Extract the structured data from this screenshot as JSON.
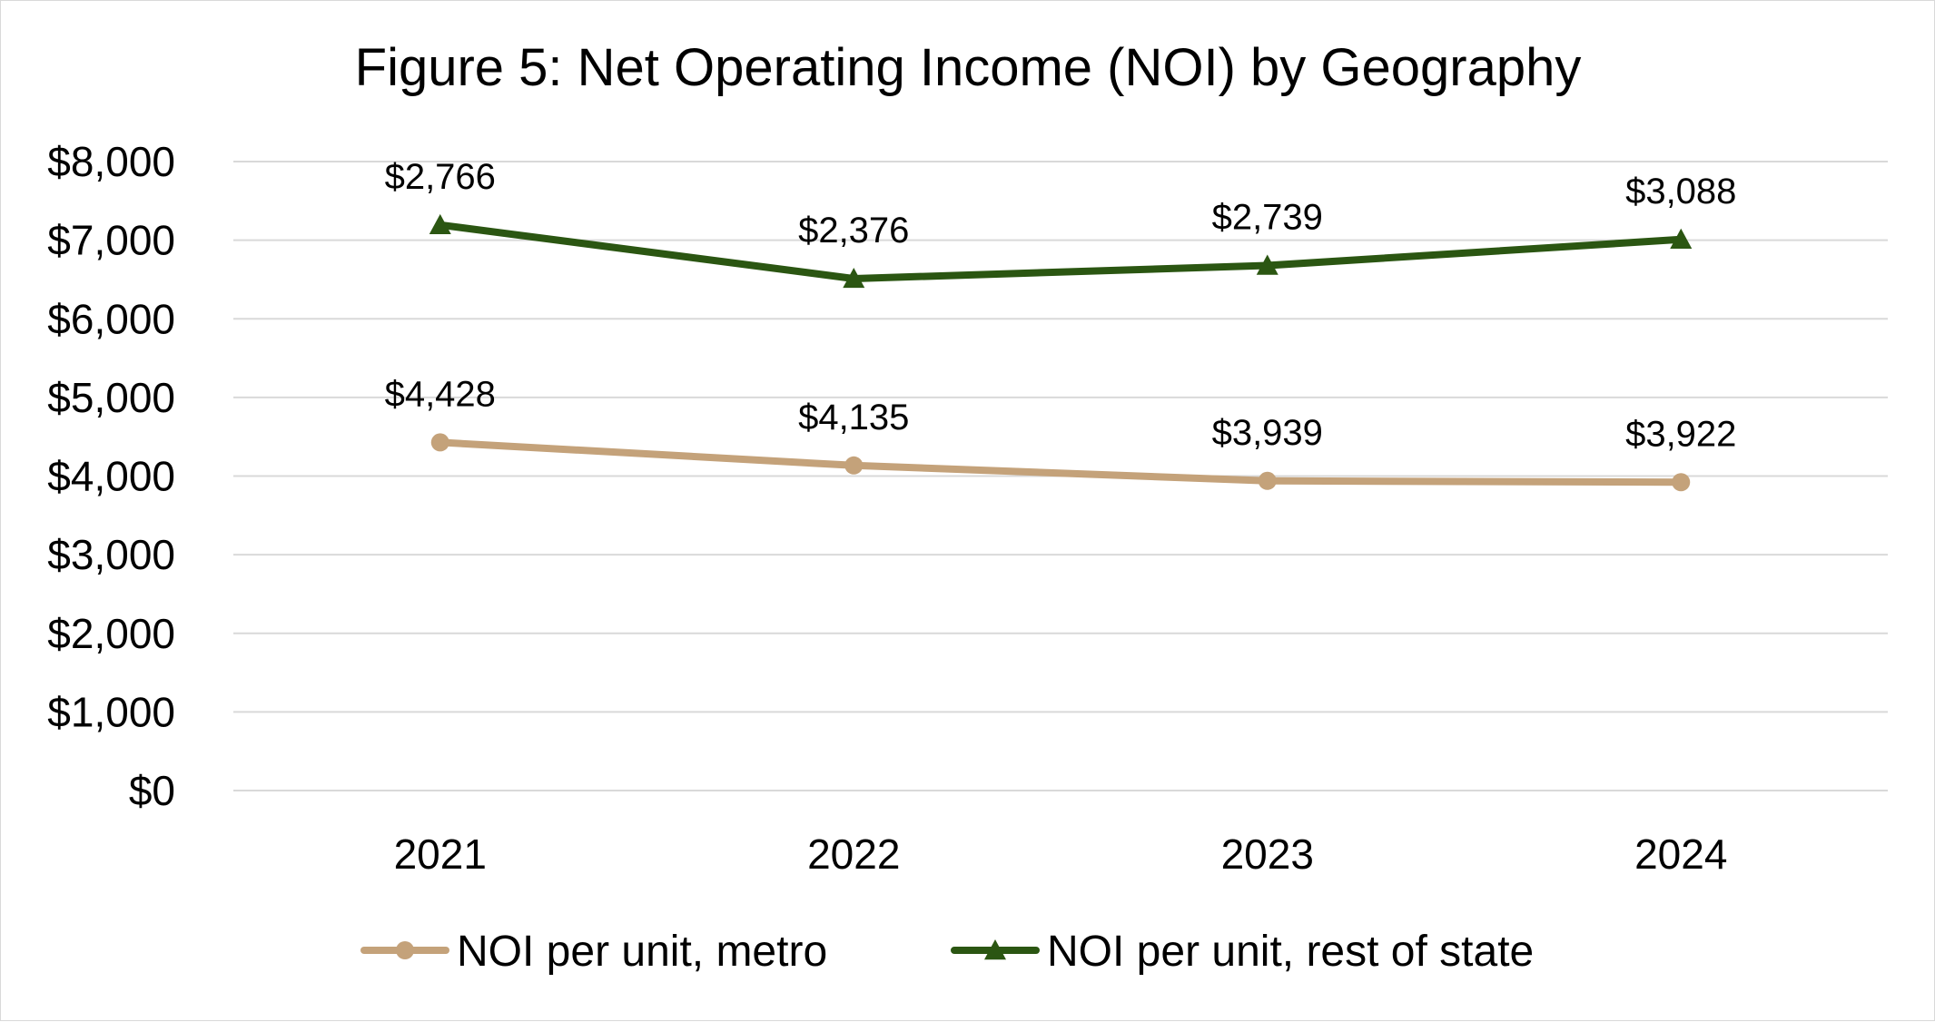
{
  "chart_data": {
    "type": "line",
    "title": "Figure 5: Net Operating Income (NOI) by Geography",
    "xlabel": "",
    "ylabel": "",
    "categories": [
      "2021",
      "2022",
      "2023",
      "2024"
    ],
    "ylim": [
      0,
      8000
    ],
    "yticks": [
      0,
      1000,
      2000,
      3000,
      4000,
      5000,
      6000,
      7000,
      8000
    ],
    "ytick_labels": [
      "$0",
      "$1,000",
      "$2,000",
      "$3,000",
      "$4,000",
      "$5,000",
      "$6,000",
      "$7,000",
      "$8,000"
    ],
    "grid": true,
    "legend_position": "bottom",
    "series": [
      {
        "name": "NOI per unit, metro",
        "values": [
          4428,
          4135,
          3939,
          3922
        ],
        "labels": [
          "$4,428",
          "$4,135",
          "$3,939",
          "$3,922"
        ],
        "color": "#c4a27a",
        "marker": "circle"
      },
      {
        "name": "NOI per unit, rest of state",
        "values": [
          7194,
          6511,
          6678,
          7010
        ],
        "labels": [
          "$2,766",
          "$2,376",
          "$2,739",
          "$3,088"
        ],
        "color": "#2b5612",
        "marker": "triangle"
      }
    ]
  }
}
